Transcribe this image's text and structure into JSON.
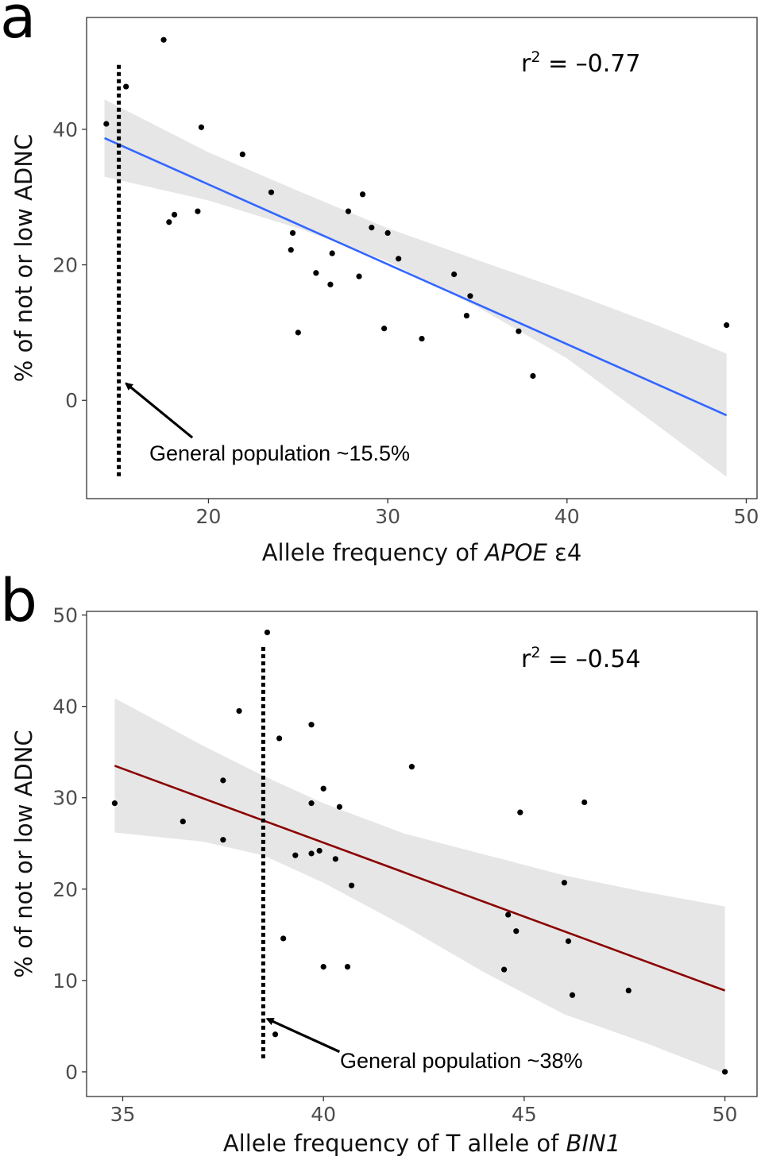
{
  "chart_data": [
    {
      "type": "scatter",
      "panel_label": "a",
      "xlabel_plain": "Allele frequency of ",
      "xlabel_italic": "APOE",
      "xlabel_suffix": " ε4",
      "ylabel": "% of not or low ADNC",
      "xlim": [
        13.2,
        50.6
      ],
      "ylim": [
        -14.5,
        56.5
      ],
      "xticks": [
        20,
        30,
        40,
        50
      ],
      "yticks": [
        0,
        20,
        40
      ],
      "r2_text": "r",
      "r2_sup": "2",
      "r2_value": " = –0.77",
      "trend_color": "#3366ff",
      "trend": {
        "x": [
          14.2,
          48.9
        ],
        "y": [
          38.7,
          -2.2
        ]
      },
      "band": {
        "x": [
          14.2,
          20,
          25,
          30,
          35,
          40,
          45,
          48.9
        ],
        "upper": [
          44.4,
          36.6,
          30.9,
          25.4,
          20.7,
          16.1,
          11.1,
          6.9
        ],
        "lower": [
          33.0,
          29.5,
          25.4,
          20.5,
          13.8,
          6.2,
          -3.6,
          -11.3
        ]
      },
      "points": [
        {
          "x": 14.3,
          "y": 40.8
        },
        {
          "x": 15.4,
          "y": 46.3
        },
        {
          "x": 17.5,
          "y": 53.2
        },
        {
          "x": 17.8,
          "y": 26.3
        },
        {
          "x": 18.1,
          "y": 27.4
        },
        {
          "x": 19.4,
          "y": 27.9
        },
        {
          "x": 19.6,
          "y": 40.3
        },
        {
          "x": 21.9,
          "y": 36.3
        },
        {
          "x": 23.5,
          "y": 30.7
        },
        {
          "x": 24.7,
          "y": 24.7
        },
        {
          "x": 24.6,
          "y": 22.2
        },
        {
          "x": 25.0,
          "y": 10.0
        },
        {
          "x": 26.0,
          "y": 18.8
        },
        {
          "x": 26.8,
          "y": 17.1
        },
        {
          "x": 26.9,
          "y": 21.7
        },
        {
          "x": 27.8,
          "y": 27.9
        },
        {
          "x": 28.4,
          "y": 18.3
        },
        {
          "x": 28.6,
          "y": 30.4
        },
        {
          "x": 29.1,
          "y": 25.5
        },
        {
          "x": 29.8,
          "y": 10.6
        },
        {
          "x": 30.0,
          "y": 24.7
        },
        {
          "x": 30.6,
          "y": 20.9
        },
        {
          "x": 31.9,
          "y": 9.1
        },
        {
          "x": 33.7,
          "y": 18.6
        },
        {
          "x": 34.4,
          "y": 12.5
        },
        {
          "x": 34.6,
          "y": 15.4
        },
        {
          "x": 37.3,
          "y": 10.2
        },
        {
          "x": 38.1,
          "y": 3.6
        },
        {
          "x": 48.9,
          "y": 11.1
        }
      ],
      "reference": {
        "x": 15.0,
        "ymin": -11.5,
        "ymax": 49.5
      },
      "annotation": {
        "text": "General population ~15.5%",
        "arrow_from": {
          "x": 19.1,
          "y": -5.5
        },
        "arrow_to": {
          "x": 15.4,
          "y": 2.5
        }
      }
    },
    {
      "type": "scatter",
      "panel_label": "b",
      "xlabel_plain": "Allele frequency of T allele of ",
      "xlabel_italic": "BIN1",
      "xlabel_suffix": "",
      "ylabel": "% of not or low ADNC",
      "xlim": [
        34.1,
        50.8
      ],
      "ylim": [
        -2.7,
        50.4
      ],
      "xticks": [
        35,
        40,
        45,
        50
      ],
      "yticks": [
        0,
        10,
        20,
        30,
        40,
        50
      ],
      "r2_text": "r",
      "r2_sup": "2",
      "r2_value": " = –0.54",
      "trend_color": "#8b0000",
      "trend": {
        "x": [
          34.8,
          50.0
        ],
        "y": [
          33.5,
          8.9
        ]
      },
      "band": {
        "x": [
          34.8,
          37,
          38.5,
          40,
          42,
          44,
          46,
          48,
          50
        ],
        "upper": [
          40.9,
          35.7,
          32.4,
          29.4,
          26.1,
          23.8,
          21.5,
          19.7,
          18.1
        ],
        "lower": [
          26.2,
          25.2,
          23.7,
          20.7,
          16.0,
          10.9,
          6.3,
          3.2,
          -0.2
        ]
      },
      "points": [
        {
          "x": 34.8,
          "y": 29.4
        },
        {
          "x": 36.5,
          "y": 27.4
        },
        {
          "x": 37.5,
          "y": 31.9
        },
        {
          "x": 37.5,
          "y": 25.4
        },
        {
          "x": 37.9,
          "y": 39.5
        },
        {
          "x": 38.6,
          "y": 48.1
        },
        {
          "x": 38.8,
          "y": 4.1
        },
        {
          "x": 38.9,
          "y": 36.5
        },
        {
          "x": 39.0,
          "y": 14.6
        },
        {
          "x": 39.3,
          "y": 23.7
        },
        {
          "x": 39.7,
          "y": 38.0
        },
        {
          "x": 39.7,
          "y": 29.4
        },
        {
          "x": 39.7,
          "y": 23.9
        },
        {
          "x": 39.9,
          "y": 24.2
        },
        {
          "x": 40.0,
          "y": 31.0
        },
        {
          "x": 40.0,
          "y": 11.5
        },
        {
          "x": 40.3,
          "y": 23.3
        },
        {
          "x": 40.4,
          "y": 29.0
        },
        {
          "x": 40.6,
          "y": 11.5
        },
        {
          "x": 40.7,
          "y": 20.4
        },
        {
          "x": 42.2,
          "y": 33.4
        },
        {
          "x": 44.5,
          "y": 11.2
        },
        {
          "x": 44.6,
          "y": 17.2
        },
        {
          "x": 44.8,
          "y": 15.4
        },
        {
          "x": 44.9,
          "y": 28.4
        },
        {
          "x": 46.0,
          "y": 20.7
        },
        {
          "x": 46.1,
          "y": 14.3
        },
        {
          "x": 46.2,
          "y": 8.4
        },
        {
          "x": 46.5,
          "y": 29.5
        },
        {
          "x": 47.6,
          "y": 8.9
        },
        {
          "x": 50.0,
          "y": 0.0
        }
      ],
      "reference": {
        "x": 38.5,
        "ymin": 1.2,
        "ymax": 46.5
      },
      "annotation": {
        "text": "General population ~38%",
        "arrow_from": {
          "x": 40.4,
          "y": 2.2
        },
        "arrow_to": {
          "x": 38.6,
          "y": 5.8
        }
      }
    }
  ]
}
